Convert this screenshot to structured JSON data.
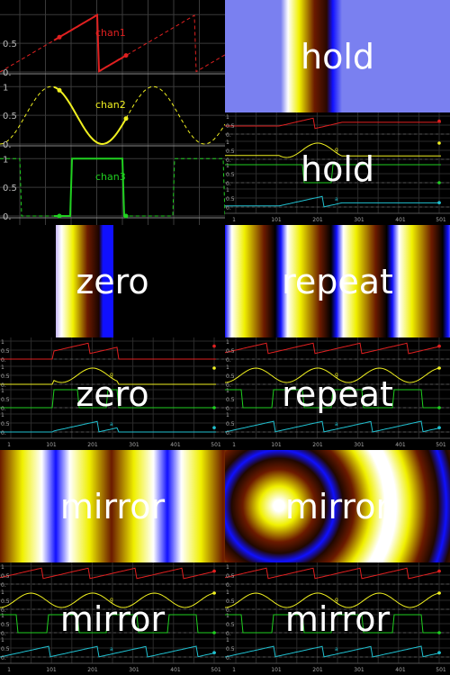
{
  "colors": {
    "selection_border": "#66c8f0",
    "grid": "#3a3a3a",
    "dashed_zero": "#ffffff",
    "chan1": "#e02020",
    "chan2": "#f0f020",
    "chan3": "#20d020",
    "chan4": "#20c0d0"
  },
  "editor": {
    "chan1": {
      "label": "chan1",
      "y_ticks": [
        "0.5",
        "0."
      ]
    },
    "chan2": {
      "label": "chan2",
      "y_ticks": [
        "1",
        "0.5",
        "0."
      ]
    },
    "chan3": {
      "label": "chan3",
      "y_ticks": [
        "1",
        "0.5",
        "0."
      ]
    }
  },
  "mini_plot": {
    "x_ticks": [
      "1",
      "101",
      "201",
      "301",
      "401",
      "501"
    ],
    "y_ticks": [
      "1",
      "0.5",
      "0."
    ],
    "channel_marks": [
      "a",
      "g"
    ]
  },
  "tiles": [
    {
      "label": "hold",
      "kind": "ramp-hold"
    },
    {
      "label": "hold",
      "kind": "plot"
    },
    {
      "label": "zero",
      "kind": "ramp-zero"
    },
    {
      "label": "repeat",
      "kind": "ramp-repeat"
    },
    {
      "label": "zero",
      "kind": "plot"
    },
    {
      "label": "repeat",
      "kind": "plot"
    },
    {
      "label": "mirror",
      "kind": "ramp-mirror"
    },
    {
      "label": "mirror",
      "kind": "radial-mirror"
    },
    {
      "label": "mirror",
      "kind": "plot"
    },
    {
      "label": "mirror",
      "kind": "plot"
    }
  ]
}
